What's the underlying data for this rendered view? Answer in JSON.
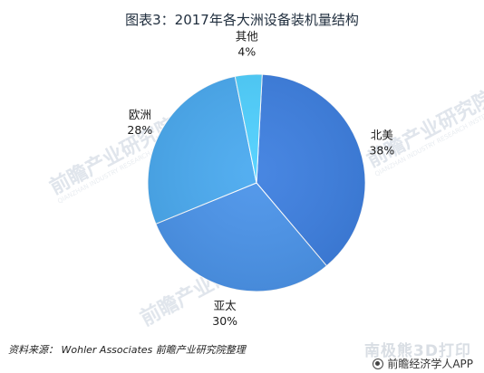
{
  "chart_data": {
    "type": "pie",
    "title": "图表3：2017年各大洲设备装机量结构",
    "slices": [
      {
        "label": "北美",
        "value": 38,
        "pct_text": "38%",
        "color": "#3d7fe0"
      },
      {
        "label": "亚太",
        "value": 30,
        "pct_text": "30%",
        "color": "#4b94ea"
      },
      {
        "label": "欧洲",
        "value": 28,
        "pct_text": "28%",
        "color": "#4aaaf0"
      },
      {
        "label": "其他",
        "value": 4,
        "pct_text": "4%",
        "color": "#4fd0ff"
      }
    ]
  },
  "source": "资料来源：  Wohler Associates  前瞻产业研究院整理",
  "watermarks": {
    "main": "前瞻产业研究院",
    "sub": "QIANZHAN INDUSTRY RESEARCH INSTITUTE",
    "bottom_right": "南极熊3D打印"
  },
  "app_badge": {
    "text": "前瞻经济学人APP",
    "icon": "qianzhan-logo-icon"
  }
}
